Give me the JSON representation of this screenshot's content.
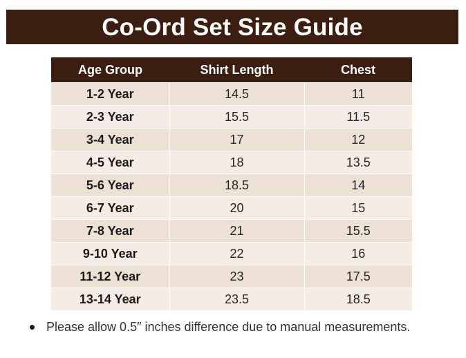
{
  "title": "Co-Ord Set Size Guide",
  "colors": {
    "header_background": "#3b1e10",
    "header_text": "#ffffff",
    "row_odd": "#ece1d4",
    "row_even": "#f5ede5"
  },
  "table": {
    "headers": [
      "Age Group",
      "Shirt Length",
      "Chest"
    ],
    "rows": [
      [
        "1-2 Year",
        "14.5",
        "11"
      ],
      [
        "2-3 Year",
        "15.5",
        "11.5"
      ],
      [
        "3-4 Year",
        "17",
        "12"
      ],
      [
        "4-5 Year",
        "18",
        "13.5"
      ],
      [
        "5-6 Year",
        "18.5",
        "14"
      ],
      [
        "6-7 Year",
        "20",
        "15"
      ],
      [
        "7-8 Year",
        "21",
        "15.5"
      ],
      [
        "9-10 Year",
        "22",
        "16"
      ],
      [
        "11-12 Year",
        "23",
        "17.5"
      ],
      [
        "13-14 Year",
        "23.5",
        "18.5"
      ]
    ]
  },
  "notes": [
    "Please allow 0.5″ inches difference due to manual measurements."
  ],
  "icons": {
    "note_bullet": "bullet-icon"
  }
}
